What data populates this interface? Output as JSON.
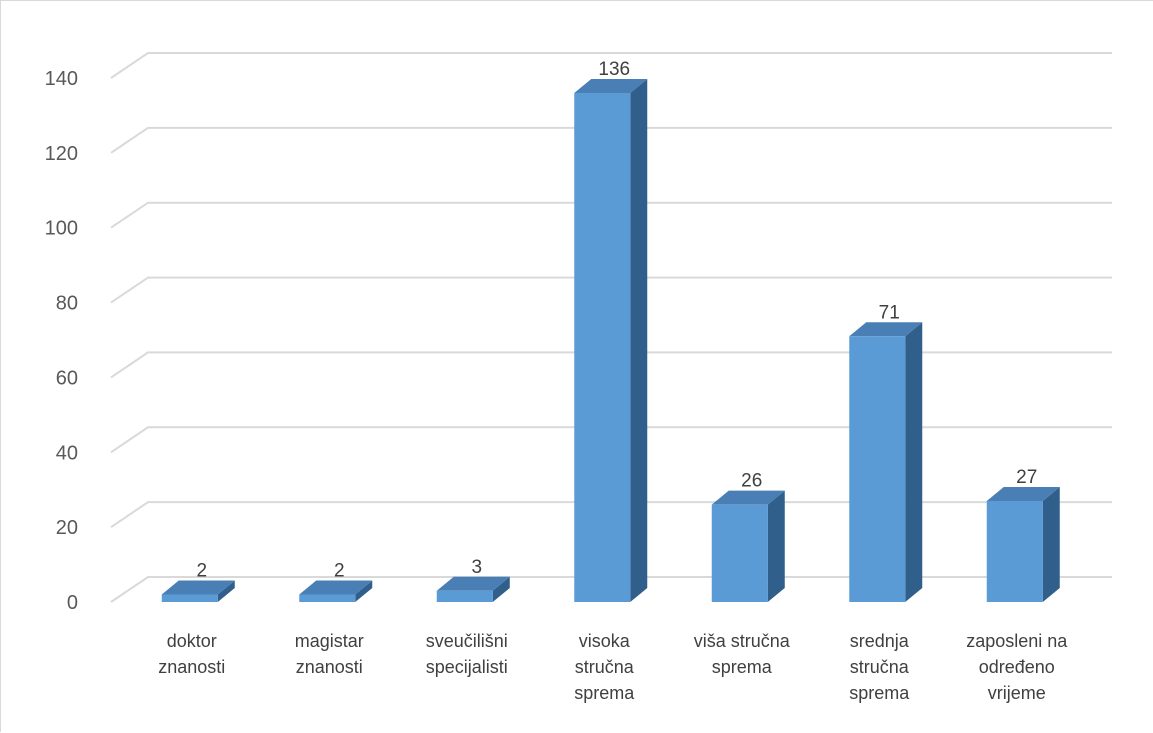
{
  "chart_data": {
    "type": "bar",
    "categories": [
      [
        "doktor",
        "znanosti"
      ],
      [
        "magistar",
        "znanosti"
      ],
      [
        "sveučilišni",
        "specijalisti"
      ],
      [
        "visoka",
        "stručna",
        "sprema"
      ],
      [
        "viša stručna",
        "sprema"
      ],
      [
        "srednja",
        "stručna",
        "sprema"
      ],
      [
        "zaposleni na",
        "određeno",
        "vrijeme"
      ]
    ],
    "values": [
      2,
      2,
      3,
      136,
      26,
      71,
      27
    ],
    "data_labels": [
      "2",
      "2",
      "3",
      "136",
      "26",
      "71",
      "27"
    ],
    "y_ticks": [
      "0",
      "20",
      "40",
      "60",
      "80",
      "100",
      "120",
      "140"
    ],
    "ylim": [
      0,
      140
    ],
    "grid": true,
    "legend": "none",
    "style": "3d-column",
    "colors": {
      "bar_front": "#5b9bd5",
      "bar_side": "#2f5f8a",
      "bar_top": "#4a7fb5",
      "grid": "#d9d9d9"
    }
  }
}
